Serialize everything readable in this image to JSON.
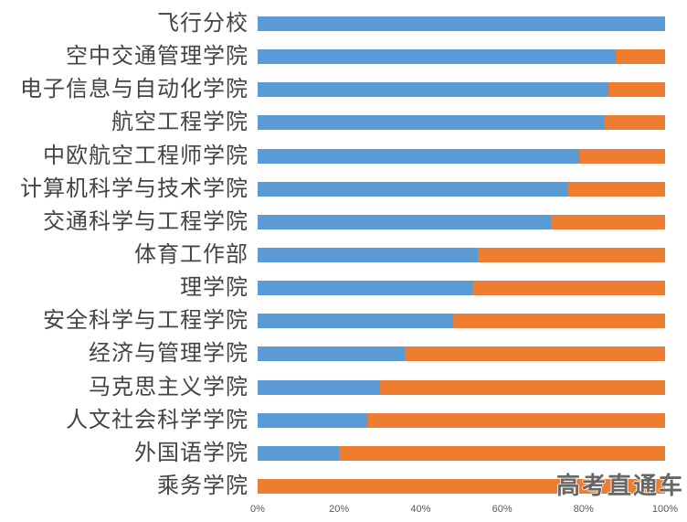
{
  "chart_data": {
    "type": "bar",
    "orientation": "horizontal",
    "stacked": true,
    "categories": [
      "飞行分校",
      "空中交通管理学院",
      "电子信息与自动化学院",
      "航空工程学院",
      "中欧航空工程师学院",
      "计算机科学与技术学院",
      "交通科学与工程学院",
      "体育工作部",
      "理学院",
      "安全科学与工程学院",
      "经济与管理学院",
      "马克思主义学院",
      "人文社会科学学院",
      "外国语学院",
      "乘务学院"
    ],
    "series": [
      {
        "name": "blue-series",
        "color": "#5B9BD5",
        "values": [
          100,
          88,
          86,
          85,
          79,
          76,
          72,
          54,
          53,
          48,
          36,
          30,
          27,
          20,
          0
        ]
      },
      {
        "name": "orange-series",
        "color": "#ED7D31",
        "values": [
          0,
          12,
          14,
          15,
          21,
          24,
          28,
          46,
          47,
          52,
          64,
          70,
          73,
          80,
          100
        ]
      }
    ],
    "x_ticks": [
      "0%",
      "20%",
      "40%",
      "60%",
      "80%",
      "100%"
    ],
    "xlim": [
      0,
      100
    ],
    "grid": false,
    "legend": false
  },
  "watermark": {
    "text": "高考直通车"
  },
  "colors": {
    "background": "#FFFFFF",
    "category_label_text": "#444444",
    "axis_tick_text": "#595959"
  }
}
